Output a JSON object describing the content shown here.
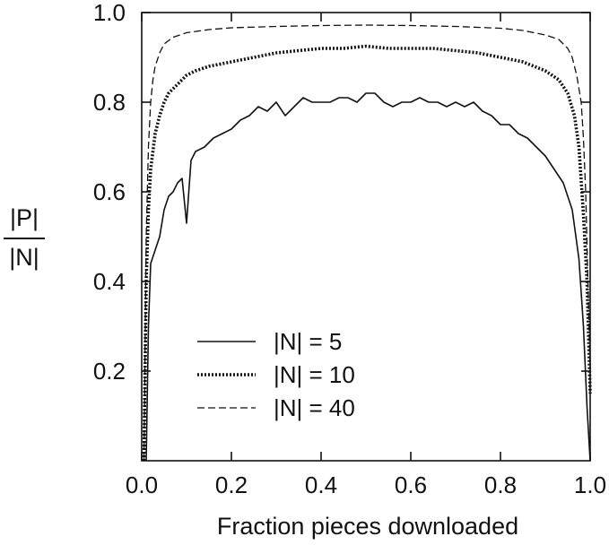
{
  "chart_data": {
    "type": "line",
    "xlabel": "Fraction pieces downloaded",
    "ylabel_numerator": "|P|",
    "ylabel_denominator": "|N|",
    "xlim": [
      0.0,
      1.0
    ],
    "ylim": [
      0.0,
      1.0
    ],
    "x_ticks": [
      0.0,
      0.2,
      0.4,
      0.6,
      0.8,
      1.0
    ],
    "x_tick_labels": [
      "0.0",
      "0.2",
      "0.4",
      "0.6",
      "0.8",
      "1.0"
    ],
    "y_ticks": [
      0.2,
      0.4,
      0.6,
      0.8,
      1.0
    ],
    "y_tick_labels": [
      "0.2",
      "0.4",
      "0.6",
      "0.8",
      "1.0"
    ],
    "grid": false,
    "legend_position": "lower-left",
    "series": [
      {
        "name": "|N| = 5",
        "style": "solid",
        "x": [
          0.01,
          0.015,
          0.02,
          0.03,
          0.04,
          0.05,
          0.06,
          0.07,
          0.08,
          0.09,
          0.1,
          0.11,
          0.12,
          0.14,
          0.16,
          0.18,
          0.2,
          0.22,
          0.24,
          0.26,
          0.28,
          0.3,
          0.32,
          0.34,
          0.36,
          0.38,
          0.4,
          0.42,
          0.44,
          0.46,
          0.48,
          0.5,
          0.52,
          0.54,
          0.56,
          0.58,
          0.6,
          0.62,
          0.64,
          0.66,
          0.68,
          0.7,
          0.72,
          0.74,
          0.76,
          0.78,
          0.8,
          0.82,
          0.84,
          0.86,
          0.88,
          0.9,
          0.92,
          0.94,
          0.96,
          0.975,
          0.985,
          0.993,
          1.0
        ],
        "y": [
          0.0,
          0.3,
          0.44,
          0.47,
          0.5,
          0.56,
          0.59,
          0.6,
          0.62,
          0.63,
          0.53,
          0.67,
          0.69,
          0.7,
          0.72,
          0.73,
          0.74,
          0.76,
          0.77,
          0.79,
          0.78,
          0.8,
          0.77,
          0.79,
          0.81,
          0.8,
          0.8,
          0.8,
          0.81,
          0.81,
          0.8,
          0.82,
          0.82,
          0.8,
          0.79,
          0.8,
          0.8,
          0.81,
          0.8,
          0.8,
          0.79,
          0.8,
          0.79,
          0.8,
          0.78,
          0.77,
          0.75,
          0.75,
          0.73,
          0.72,
          0.7,
          0.68,
          0.65,
          0.62,
          0.56,
          0.45,
          0.3,
          0.12,
          0.0
        ]
      },
      {
        "name": "|N| = 10",
        "style": "dotted",
        "x": [
          0.005,
          0.01,
          0.015,
          0.02,
          0.03,
          0.04,
          0.05,
          0.06,
          0.08,
          0.1,
          0.12,
          0.15,
          0.2,
          0.25,
          0.3,
          0.35,
          0.4,
          0.45,
          0.5,
          0.55,
          0.6,
          0.65,
          0.7,
          0.75,
          0.8,
          0.85,
          0.9,
          0.93,
          0.95,
          0.965,
          0.975,
          0.985,
          0.993,
          1.0
        ],
        "y": [
          0.0,
          0.4,
          0.56,
          0.65,
          0.73,
          0.77,
          0.8,
          0.82,
          0.84,
          0.86,
          0.87,
          0.88,
          0.89,
          0.9,
          0.91,
          0.915,
          0.92,
          0.92,
          0.925,
          0.92,
          0.92,
          0.92,
          0.915,
          0.91,
          0.9,
          0.89,
          0.87,
          0.85,
          0.82,
          0.77,
          0.7,
          0.55,
          0.4,
          0.15
        ]
      },
      {
        "name": "|N| = 40",
        "style": "dashed",
        "x": [
          0.005,
          0.01,
          0.015,
          0.02,
          0.025,
          0.03,
          0.04,
          0.05,
          0.07,
          0.1,
          0.15,
          0.2,
          0.3,
          0.4,
          0.5,
          0.6,
          0.7,
          0.8,
          0.85,
          0.9,
          0.93,
          0.95,
          0.96,
          0.97,
          0.98,
          0.985,
          0.99,
          0.995,
          1.0
        ],
        "y": [
          0.0,
          0.5,
          0.7,
          0.8,
          0.85,
          0.88,
          0.91,
          0.93,
          0.945,
          0.955,
          0.962,
          0.966,
          0.969,
          0.971,
          0.972,
          0.971,
          0.969,
          0.965,
          0.96,
          0.95,
          0.94,
          0.92,
          0.9,
          0.86,
          0.8,
          0.72,
          0.6,
          0.4,
          0.2
        ]
      }
    ]
  }
}
